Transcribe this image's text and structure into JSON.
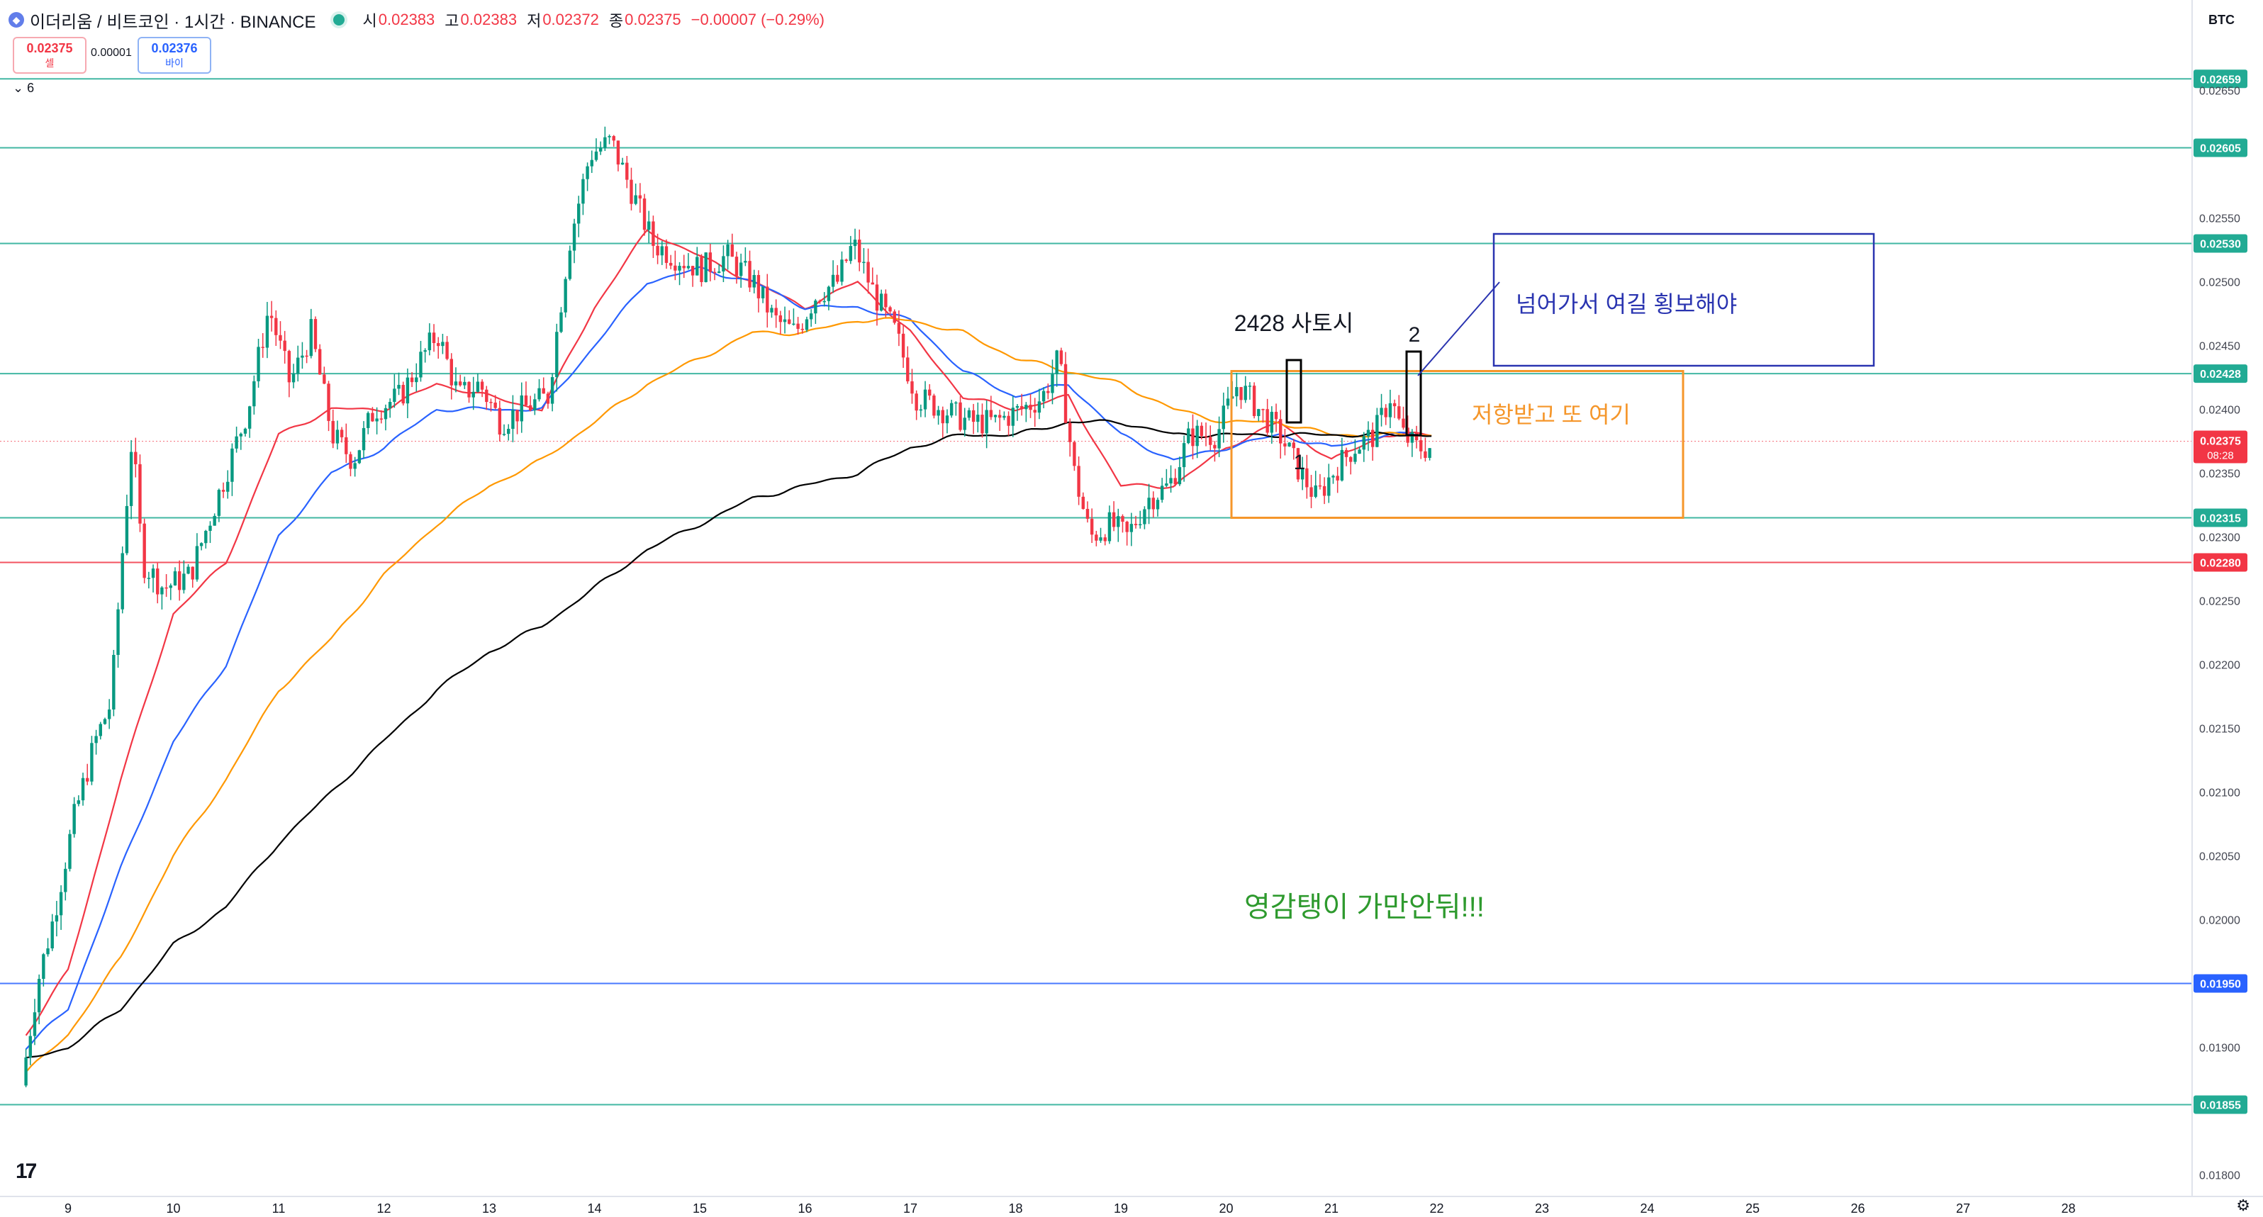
{
  "header": {
    "symbol": "이더리움 / 비트코인 · 1시간 · BINANCE",
    "open_label": "시",
    "open": "0.02383",
    "high_label": "고",
    "high": "0.02383",
    "low_label": "저",
    "low": "0.02372",
    "close_label": "종",
    "close": "0.02375",
    "change": "−0.00007 (−0.29%)"
  },
  "trade": {
    "sell_price": "0.02375",
    "sell_label": "셀",
    "spread": "0.00001",
    "buy_price": "0.02376",
    "buy_label": "바이"
  },
  "indicator_count": "6",
  "currency": "BTC",
  "colors": {
    "up": "#089981",
    "down": "#f23645",
    "ema1": "#f23645",
    "ema2": "#2962ff",
    "ema3": "#ff9800",
    "ema4": "#000000",
    "hline": "#22ab94",
    "box_orange": "#f5962a",
    "box_blue": "#2a34b0"
  },
  "chart_data": {
    "type": "candlestick",
    "xlabel": "",
    "ylabel": "",
    "ylim": [
      0.0179,
      0.0268
    ],
    "x_ticks": [
      "9",
      "10",
      "11",
      "12",
      "13",
      "14",
      "15",
      "16",
      "17",
      "18",
      "19",
      "20",
      "21",
      "22",
      "23",
      "24",
      "25",
      "26",
      "27",
      "28"
    ],
    "y_ticks": [
      "0.02650",
      "0.02550",
      "0.02500",
      "0.02450",
      "0.02400",
      "0.02350",
      "0.02300",
      "0.02250",
      "0.02200",
      "0.02150",
      "0.02100",
      "0.02050",
      "0.02000",
      "0.01900",
      "0.01800"
    ],
    "price_levels": [
      {
        "price": "0.02659",
        "value": 0.02659,
        "color": "#22ab94"
      },
      {
        "price": "0.02605",
        "value": 0.02605,
        "color": "#22ab94"
      },
      {
        "price": "0.02530",
        "value": 0.0253,
        "color": "#22ab94"
      },
      {
        "price": "0.02428",
        "value": 0.02428,
        "color": "#22ab94"
      },
      {
        "price": "0.02315",
        "value": 0.02315,
        "color": "#22ab94"
      },
      {
        "price": "0.02280",
        "value": 0.0228,
        "color": "#f23645"
      },
      {
        "price": "0.01950",
        "value": 0.0195,
        "color": "#2962ff"
      },
      {
        "price": "0.01855",
        "value": 0.01855,
        "color": "#22ab94"
      }
    ],
    "last_price": {
      "price": "0.02375",
      "value": 0.02375,
      "countdown": "08:28"
    },
    "price_path": [
      [
        8.6,
        0.0187
      ],
      [
        8.75,
        0.0195
      ],
      [
        8.9,
        0.02
      ],
      [
        9.1,
        0.0208
      ],
      [
        9.3,
        0.0214
      ],
      [
        9.45,
        0.0217
      ],
      [
        9.55,
        0.0228
      ],
      [
        9.65,
        0.0238
      ],
      [
        9.75,
        0.0228
      ],
      [
        9.95,
        0.0226
      ],
      [
        10.2,
        0.0227
      ],
      [
        10.5,
        0.0234
      ],
      [
        10.75,
        0.024
      ],
      [
        10.95,
        0.0248
      ],
      [
        11.15,
        0.0242
      ],
      [
        11.35,
        0.0246
      ],
      [
        11.55,
        0.0238
      ],
      [
        11.75,
        0.0236
      ],
      [
        11.95,
        0.024
      ],
      [
        12.2,
        0.0241
      ],
      [
        12.4,
        0.0244
      ],
      [
        12.55,
        0.0246
      ],
      [
        12.75,
        0.0241
      ],
      [
        12.95,
        0.0242
      ],
      [
        13.15,
        0.0239
      ],
      [
        13.35,
        0.024
      ],
      [
        13.6,
        0.0241
      ],
      [
        13.8,
        0.0253
      ],
      [
        14.0,
        0.026
      ],
      [
        14.2,
        0.0261
      ],
      [
        14.35,
        0.0258
      ],
      [
        14.45,
        0.0256
      ],
      [
        14.6,
        0.0253
      ],
      [
        14.8,
        0.0252
      ],
      [
        15.05,
        0.0251
      ],
      [
        15.3,
        0.0252
      ],
      [
        15.55,
        0.025
      ],
      [
        15.75,
        0.0247
      ],
      [
        15.95,
        0.0246
      ],
      [
        16.15,
        0.0249
      ],
      [
        16.35,
        0.025
      ],
      [
        16.5,
        0.0253
      ],
      [
        16.7,
        0.0249
      ],
      [
        16.9,
        0.0246
      ],
      [
        17.1,
        0.0241
      ],
      [
        17.35,
        0.024
      ],
      [
        17.6,
        0.0239
      ],
      [
        17.85,
        0.0239
      ],
      [
        18.1,
        0.024
      ],
      [
        18.3,
        0.0241
      ],
      [
        18.45,
        0.0244
      ],
      [
        18.6,
        0.0235
      ],
      [
        18.75,
        0.023
      ],
      [
        18.95,
        0.0231
      ],
      [
        19.1,
        0.023
      ],
      [
        19.3,
        0.0233
      ],
      [
        19.5,
        0.0234
      ],
      [
        19.7,
        0.0238
      ],
      [
        19.95,
        0.0238
      ],
      [
        20.15,
        0.0242
      ],
      [
        20.35,
        0.024
      ],
      [
        20.55,
        0.0238
      ],
      [
        20.75,
        0.0235
      ],
      [
        20.9,
        0.0233
      ],
      [
        21.05,
        0.0235
      ],
      [
        21.25,
        0.0237
      ],
      [
        21.45,
        0.0238
      ],
      [
        21.6,
        0.0241
      ],
      [
        21.72,
        0.0238
      ],
      [
        21.85,
        0.0237
      ],
      [
        21.95,
        0.0237
      ]
    ],
    "series": [
      {
        "name": "",
        "color": "#f23645",
        "values": [
          [
            8.6,
            0.0191
          ],
          [
            9.0,
            0.0196
          ],
          [
            9.5,
            0.0211
          ],
          [
            10.0,
            0.0224
          ],
          [
            10.5,
            0.0228
          ],
          [
            11.0,
            0.0238
          ],
          [
            11.5,
            0.024
          ],
          [
            12.0,
            0.024
          ],
          [
            12.5,
            0.0242
          ],
          [
            13.0,
            0.0241
          ],
          [
            13.5,
            0.024
          ],
          [
            14.0,
            0.0248
          ],
          [
            14.5,
            0.0254
          ],
          [
            15.0,
            0.0252
          ],
          [
            15.5,
            0.025
          ],
          [
            16.0,
            0.0248
          ],
          [
            16.5,
            0.025
          ],
          [
            17.0,
            0.0246
          ],
          [
            17.5,
            0.0241
          ],
          [
            18.0,
            0.024
          ],
          [
            18.5,
            0.0241
          ],
          [
            19.0,
            0.0234
          ],
          [
            19.5,
            0.0234
          ],
          [
            20.0,
            0.0237
          ],
          [
            20.5,
            0.0239
          ],
          [
            21.0,
            0.0236
          ],
          [
            21.5,
            0.0238
          ],
          [
            21.95,
            0.0238
          ]
        ]
      },
      {
        "name": "",
        "color": "#2962ff",
        "values": [
          [
            8.6,
            0.019
          ],
          [
            9.0,
            0.0193
          ],
          [
            9.5,
            0.0204
          ],
          [
            10.0,
            0.0214
          ],
          [
            10.5,
            0.022
          ],
          [
            11.0,
            0.023
          ],
          [
            11.5,
            0.0235
          ],
          [
            12.0,
            0.0237
          ],
          [
            12.5,
            0.024
          ],
          [
            13.0,
            0.024
          ],
          [
            13.5,
            0.024
          ],
          [
            14.0,
            0.0245
          ],
          [
            14.5,
            0.025
          ],
          [
            15.0,
            0.0251
          ],
          [
            15.5,
            0.025
          ],
          [
            16.0,
            0.0248
          ],
          [
            16.5,
            0.0248
          ],
          [
            17.0,
            0.0247
          ],
          [
            17.5,
            0.0243
          ],
          [
            18.0,
            0.0241
          ],
          [
            18.5,
            0.0242
          ],
          [
            19.0,
            0.0238
          ],
          [
            19.5,
            0.0236
          ],
          [
            20.0,
            0.0237
          ],
          [
            20.5,
            0.0238
          ],
          [
            21.0,
            0.0237
          ],
          [
            21.5,
            0.0238
          ],
          [
            21.95,
            0.0238
          ]
        ]
      },
      {
        "name": "",
        "color": "#ff9800",
        "values": [
          [
            8.6,
            0.0188
          ],
          [
            9.0,
            0.0191
          ],
          [
            9.5,
            0.0197
          ],
          [
            10.0,
            0.0205
          ],
          [
            10.5,
            0.0211
          ],
          [
            11.0,
            0.0218
          ],
          [
            11.5,
            0.0222
          ],
          [
            12.0,
            0.0227
          ],
          [
            12.5,
            0.0231
          ],
          [
            13.0,
            0.0234
          ],
          [
            13.5,
            0.0236
          ],
          [
            14.0,
            0.0239
          ],
          [
            14.5,
            0.0242
          ],
          [
            15.0,
            0.0244
          ],
          [
            15.5,
            0.0246
          ],
          [
            16.0,
            0.0246
          ],
          [
            16.5,
            0.0247
          ],
          [
            17.0,
            0.0247
          ],
          [
            17.5,
            0.0246
          ],
          [
            18.0,
            0.0244
          ],
          [
            18.5,
            0.0243
          ],
          [
            19.0,
            0.0242
          ],
          [
            19.5,
            0.024
          ],
          [
            20.0,
            0.0239
          ],
          [
            20.5,
            0.0239
          ],
          [
            21.0,
            0.0238
          ],
          [
            21.5,
            0.0238
          ],
          [
            21.95,
            0.0238
          ]
        ]
      },
      {
        "name": "",
        "color": "#000000",
        "values": [
          [
            8.6,
            0.0189
          ],
          [
            9.0,
            0.019
          ],
          [
            9.5,
            0.0193
          ],
          [
            10.0,
            0.0198
          ],
          [
            10.5,
            0.0201
          ],
          [
            11.0,
            0.0206
          ],
          [
            11.5,
            0.021
          ],
          [
            12.0,
            0.0214
          ],
          [
            12.5,
            0.0218
          ],
          [
            13.0,
            0.0221
          ],
          [
            13.5,
            0.0223
          ],
          [
            14.0,
            0.0226
          ],
          [
            14.5,
            0.0229
          ],
          [
            15.0,
            0.0231
          ],
          [
            15.5,
            0.0233
          ],
          [
            16.0,
            0.0234
          ],
          [
            16.5,
            0.0235
          ],
          [
            17.0,
            0.0237
          ],
          [
            17.5,
            0.0238
          ],
          [
            18.0,
            0.0238
          ],
          [
            18.5,
            0.0239
          ],
          [
            19.0,
            0.0239
          ],
          [
            19.5,
            0.0238
          ],
          [
            20.0,
            0.0238
          ],
          [
            20.5,
            0.0238
          ],
          [
            21.0,
            0.0238
          ],
          [
            21.5,
            0.0238
          ],
          [
            21.95,
            0.0238
          ]
        ]
      }
    ],
    "annotations": {
      "label_2428": "2428 사토시",
      "label_1": "1",
      "label_2": "2",
      "blue_box_text": "넘어가서 여길 횡보해야",
      "orange_box_text": "저항받고 또 여기",
      "bottom_text": "영감탱이 가만안둬!!!"
    },
    "legend": "none",
    "grid": false
  }
}
